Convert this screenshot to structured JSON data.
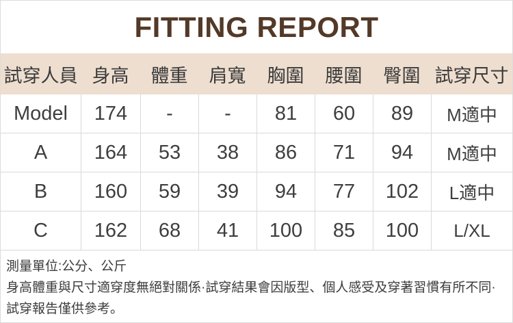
{
  "title": "FITTING REPORT",
  "colors": {
    "title_text": "#533927",
    "header_bg": "#eeded0",
    "body_text": "#3e3e3e",
    "border": "#d9d9d9"
  },
  "table": {
    "headers": [
      "試穿人員",
      "身高",
      "體重",
      "肩寬",
      "胸圍",
      "腰圍",
      "臀圍",
      "試穿尺寸"
    ],
    "rows": [
      {
        "cells": [
          "Model",
          "174",
          "-",
          "-",
          "81",
          "60",
          "89",
          "M適中"
        ]
      },
      {
        "cells": [
          "A",
          "164",
          "53",
          "38",
          "86",
          "71",
          "94",
          "M適中"
        ]
      },
      {
        "cells": [
          "B",
          "160",
          "59",
          "39",
          "94",
          "77",
          "102",
          "L適中"
        ]
      },
      {
        "cells": [
          "C",
          "162",
          "68",
          "41",
          "100",
          "85",
          "100",
          "L/XL"
        ]
      }
    ]
  },
  "footer": {
    "unit_note": "測量單位:公分、公斤",
    "disclaimer": "身高體重與尺寸適穿度無絕對關係·試穿結果會因版型、個人感受及穿著習慣有所不同·試穿報告僅供參考。"
  }
}
